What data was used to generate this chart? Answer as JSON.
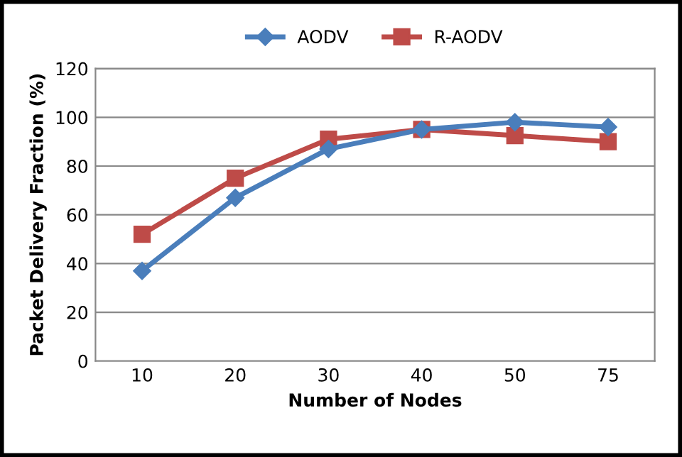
{
  "chart_data": {
    "type": "line",
    "xlabel": "Number of Nodes",
    "ylabel": "Packet Delivery Fraction (%)",
    "categories": [
      "10",
      "20",
      "30",
      "40",
      "50",
      "75"
    ],
    "series": [
      {
        "name": "AODV",
        "color": "#4a7ebb",
        "marker": "diamond",
        "values": [
          37,
          67,
          87,
          95,
          98,
          96
        ]
      },
      {
        "name": "R-AODV",
        "color": "#be4b48",
        "marker": "square",
        "values": [
          52,
          75,
          91,
          95,
          92.5,
          90
        ]
      }
    ],
    "ylim": [
      0,
      120
    ],
    "yticks": [
      0,
      20,
      40,
      60,
      80,
      100,
      120
    ],
    "grid": "y",
    "legend": "top",
    "line_style": "solid"
  }
}
